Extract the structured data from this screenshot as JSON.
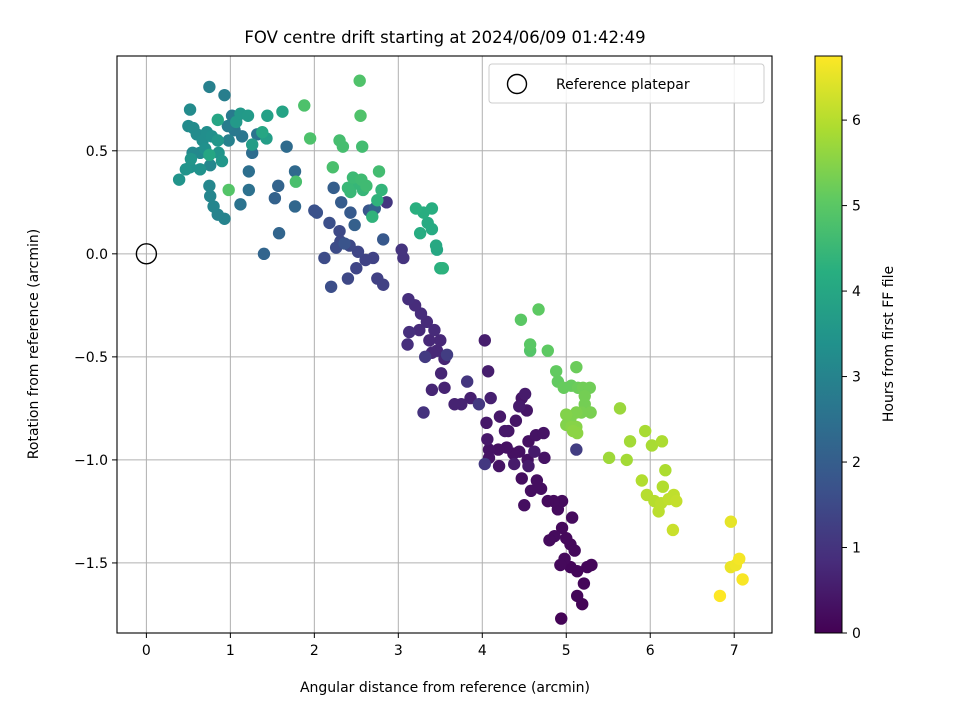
{
  "chart_data": {
    "type": "scatter",
    "title": "FOV centre drift starting at 2024/06/09 01:42:49",
    "xlabel": "Angular distance from reference (arcmin)",
    "ylabel": "Rotation from reference (arcmin)",
    "xlim": [
      -0.35,
      7.45
    ],
    "ylim": [
      -1.84,
      0.96
    ],
    "xticks": [
      0,
      1,
      2,
      3,
      4,
      5,
      6,
      7
    ],
    "xtick_labels": [
      "0",
      "1",
      "2",
      "3",
      "4",
      "5",
      "6",
      "7"
    ],
    "yticks": [
      0.5,
      0.0,
      -0.5,
      -1.0,
      -1.5
    ],
    "ytick_labels": [
      "0.5",
      "0.0",
      "−0.5",
      "−1.0",
      "−1.5"
    ],
    "grid": true,
    "legend": {
      "position": "top-right",
      "entries": [
        "Reference platepar"
      ]
    },
    "reference_point": {
      "x": 0,
      "y": 0,
      "label": "Reference platepar"
    },
    "colorbar": {
      "label": "Hours from first FF file",
      "min": 0,
      "max": 6.75,
      "ticks": [
        0,
        1,
        2,
        3,
        4,
        5,
        6
      ],
      "tick_labels": [
        "0",
        "1",
        "2",
        "3",
        "4",
        "5",
        "6"
      ],
      "colormap": "viridis"
    },
    "points": [
      [
        4.94,
        -1.77,
        0.05
      ],
      [
        5.19,
        -1.7,
        0.05
      ],
      [
        5.13,
        -1.66,
        0.1
      ],
      [
        5.21,
        -1.6,
        0.1
      ],
      [
        5.25,
        -1.52,
        0.1
      ],
      [
        5.3,
        -1.51,
        0.1
      ],
      [
        5.13,
        -1.54,
        0.1
      ],
      [
        5.05,
        -1.52,
        0.1
      ],
      [
        4.98,
        -1.48,
        0.15
      ],
      [
        4.93,
        -1.51,
        0.15
      ],
      [
        5.05,
        -1.41,
        0.15
      ],
      [
        5.1,
        -1.44,
        0.15
      ],
      [
        5.0,
        -1.38,
        0.15
      ],
      [
        4.95,
        -1.33,
        0.15
      ],
      [
        4.86,
        -1.37,
        0.2
      ],
      [
        4.8,
        -1.39,
        0.2
      ],
      [
        4.9,
        -1.24,
        0.2
      ],
      [
        5.07,
        -1.28,
        0.2
      ],
      [
        4.95,
        -1.2,
        0.2
      ],
      [
        4.85,
        -1.2,
        0.2
      ],
      [
        4.78,
        -1.2,
        0.2
      ],
      [
        4.7,
        -1.14,
        0.25
      ],
      [
        4.65,
        -1.1,
        0.25
      ],
      [
        4.58,
        -1.15,
        0.25
      ],
      [
        4.47,
        -1.09,
        0.25
      ],
      [
        4.5,
        -1.22,
        0.25
      ],
      [
        4.54,
        -1.0,
        0.3
      ],
      [
        4.44,
        -0.96,
        0.3
      ],
      [
        4.37,
        -0.97,
        0.3
      ],
      [
        4.29,
        -0.94,
        0.3
      ],
      [
        4.19,
        -0.95,
        0.3
      ],
      [
        4.55,
        -0.91,
        0.3
      ],
      [
        4.64,
        -0.88,
        0.35
      ],
      [
        4.73,
        -0.87,
        0.35
      ],
      [
        4.74,
        -0.99,
        0.35
      ],
      [
        4.08,
        -0.95,
        0.35
      ],
      [
        4.08,
        -0.99,
        0.35
      ],
      [
        4.2,
        -1.03,
        0.35
      ],
      [
        4.31,
        -0.86,
        0.4
      ],
      [
        4.4,
        -0.81,
        0.4
      ],
      [
        4.53,
        -0.76,
        0.4
      ],
      [
        4.47,
        -0.7,
        0.4
      ],
      [
        4.21,
        -0.79,
        0.45
      ],
      [
        4.05,
        -0.82,
        0.45
      ],
      [
        4.06,
        -0.9,
        0.45
      ],
      [
        4.27,
        -0.86,
        0.45
      ],
      [
        4.44,
        -0.74,
        0.5
      ],
      [
        4.51,
        -0.68,
        0.5
      ],
      [
        4.62,
        -0.96,
        0.5
      ],
      [
        4.55,
        -1.03,
        0.5
      ],
      [
        4.38,
        -1.02,
        0.5
      ],
      [
        4.03,
        -0.42,
        0.55
      ],
      [
        4.07,
        -0.57,
        0.55
      ],
      [
        4.1,
        -0.7,
        0.6
      ],
      [
        3.86,
        -0.7,
        0.6
      ],
      [
        3.75,
        -0.73,
        0.65
      ],
      [
        3.67,
        -0.73,
        0.65
      ],
      [
        3.55,
        -0.65,
        0.65
      ],
      [
        3.4,
        -0.66,
        0.7
      ],
      [
        3.51,
        -0.58,
        0.7
      ],
      [
        3.55,
        -0.51,
        0.7
      ],
      [
        3.46,
        -0.47,
        0.75
      ],
      [
        3.5,
        -0.42,
        0.75
      ],
      [
        3.4,
        -0.48,
        0.75
      ],
      [
        3.37,
        -0.42,
        0.75
      ],
      [
        3.43,
        -0.37,
        0.8
      ],
      [
        3.34,
        -0.33,
        0.8
      ],
      [
        3.25,
        -0.37,
        0.8
      ],
      [
        3.27,
        -0.29,
        0.85
      ],
      [
        3.2,
        -0.25,
        0.85
      ],
      [
        3.12,
        -0.22,
        0.9
      ],
      [
        3.13,
        -0.38,
        0.9
      ],
      [
        3.11,
        -0.44,
        0.9
      ],
      [
        3.3,
        -0.77,
        0.95
      ],
      [
        3.06,
        -0.02,
        1.0
      ],
      [
        3.04,
        0.02,
        1.0
      ],
      [
        2.86,
        0.25,
        1.05
      ],
      [
        3.82,
        -0.62,
        1.05
      ],
      [
        3.96,
        -0.73,
        1.1
      ],
      [
        4.03,
        -1.02,
        1.1
      ],
      [
        3.32,
        -0.5,
        1.15
      ],
      [
        3.58,
        -0.49,
        1.2
      ],
      [
        5.12,
        -0.95,
        1.2
      ],
      [
        2.75,
        -0.12,
        1.3
      ],
      [
        2.82,
        -0.15,
        1.3
      ],
      [
        2.7,
        -0.02,
        1.35
      ],
      [
        2.61,
        -0.03,
        1.35
      ],
      [
        2.5,
        -0.07,
        1.4
      ],
      [
        2.52,
        0.01,
        1.4
      ],
      [
        2.42,
        0.04,
        1.45
      ],
      [
        2.4,
        -0.12,
        1.45
      ],
      [
        2.31,
        0.06,
        1.5
      ],
      [
        2.3,
        0.11,
        1.5
      ],
      [
        2.26,
        0.03,
        1.55
      ],
      [
        2.12,
        -0.02,
        1.55
      ],
      [
        2.2,
        -0.16,
        1.6
      ],
      [
        2.18,
        0.15,
        1.65
      ],
      [
        2.03,
        0.2,
        1.7
      ],
      [
        2.0,
        0.21,
        1.7
      ],
      [
        2.36,
        0.05,
        1.75
      ],
      [
        2.65,
        0.21,
        1.8
      ],
      [
        2.82,
        0.07,
        1.85
      ],
      [
        2.43,
        0.2,
        1.9
      ],
      [
        2.32,
        0.25,
        1.95
      ],
      [
        2.23,
        0.32,
        2.0
      ],
      [
        2.48,
        0.14,
        2.05
      ],
      [
        2.72,
        0.22,
        2.1
      ],
      [
        1.53,
        0.27,
        2.1
      ],
      [
        1.57,
        0.33,
        2.15
      ],
      [
        1.4,
        0.0,
        2.2
      ],
      [
        1.58,
        0.1,
        2.2
      ],
      [
        1.77,
        0.23,
        2.25
      ],
      [
        1.77,
        0.4,
        2.3
      ],
      [
        1.67,
        0.52,
        2.35
      ],
      [
        1.26,
        0.49,
        2.4
      ],
      [
        1.22,
        0.4,
        2.45
      ],
      [
        1.22,
        0.31,
        2.5
      ],
      [
        1.12,
        0.24,
        2.55
      ],
      [
        1.32,
        0.58,
        2.6
      ],
      [
        1.14,
        0.57,
        2.65
      ],
      [
        1.05,
        0.6,
        2.7
      ],
      [
        1.02,
        0.67,
        2.75
      ],
      [
        0.97,
        0.62,
        2.8
      ],
      [
        0.93,
        0.77,
        2.85
      ],
      [
        0.75,
        0.81,
        2.9
      ],
      [
        0.98,
        0.55,
        2.95
      ],
      [
        0.93,
        0.17,
        3.0
      ],
      [
        0.85,
        0.19,
        3.0
      ],
      [
        0.8,
        0.23,
        3.05
      ],
      [
        0.76,
        0.28,
        3.05
      ],
      [
        0.75,
        0.33,
        3.1
      ],
      [
        0.76,
        0.43,
        3.1
      ],
      [
        0.64,
        0.49,
        3.15
      ],
      [
        0.55,
        0.49,
        3.15
      ],
      [
        0.5,
        0.62,
        3.2
      ],
      [
        0.52,
        0.7,
        3.2
      ],
      [
        0.56,
        0.61,
        3.25
      ],
      [
        0.6,
        0.58,
        3.25
      ],
      [
        0.67,
        0.55,
        3.3
      ],
      [
        0.72,
        0.59,
        3.3
      ],
      [
        0.78,
        0.57,
        3.35
      ],
      [
        0.7,
        0.51,
        3.35
      ],
      [
        0.64,
        0.41,
        3.4
      ],
      [
        0.52,
        0.42,
        3.4
      ],
      [
        0.47,
        0.41,
        3.45
      ],
      [
        0.39,
        0.36,
        3.45
      ],
      [
        0.53,
        0.46,
        3.5
      ],
      [
        0.86,
        0.49,
        3.5
      ],
      [
        0.85,
        0.55,
        3.55
      ],
      [
        0.9,
        0.45,
        3.55
      ],
      [
        1.07,
        0.64,
        3.6
      ],
      [
        1.12,
        0.68,
        3.6
      ],
      [
        1.21,
        0.67,
        3.65
      ],
      [
        1.26,
        0.53,
        3.7
      ],
      [
        1.43,
        0.56,
        3.75
      ],
      [
        1.44,
        0.67,
        3.8
      ],
      [
        1.62,
        0.69,
        3.9
      ],
      [
        0.85,
        0.65,
        3.95
      ],
      [
        0.75,
        0.48,
        4.0
      ],
      [
        1.38,
        0.59,
        4.0
      ],
      [
        3.46,
        0.02,
        4.0
      ],
      [
        3.45,
        0.04,
        4.05
      ],
      [
        3.35,
        0.15,
        4.1
      ],
      [
        3.4,
        0.12,
        4.1
      ],
      [
        3.26,
        0.1,
        4.15
      ],
      [
        3.4,
        0.22,
        4.2
      ],
      [
        3.3,
        0.2,
        4.2
      ],
      [
        3.21,
        0.22,
        4.25
      ],
      [
        3.5,
        -0.07,
        4.25
      ],
      [
        3.53,
        -0.07,
        4.3
      ],
      [
        2.75,
        0.26,
        4.35
      ],
      [
        2.69,
        0.18,
        4.35
      ],
      [
        2.8,
        0.31,
        4.4
      ],
      [
        2.58,
        0.31,
        4.45
      ],
      [
        2.52,
        0.34,
        4.45
      ],
      [
        2.43,
        0.3,
        4.5
      ],
      [
        2.4,
        0.32,
        4.5
      ],
      [
        2.46,
        0.37,
        4.55
      ],
      [
        2.56,
        0.36,
        4.6
      ],
      [
        2.62,
        0.33,
        4.6
      ],
      [
        2.77,
        0.4,
        4.65
      ],
      [
        2.57,
        0.52,
        4.65
      ],
      [
        2.3,
        0.55,
        4.7
      ],
      [
        2.34,
        0.52,
        4.7
      ],
      [
        2.22,
        0.42,
        4.75
      ],
      [
        1.78,
        0.35,
        4.75
      ],
      [
        1.95,
        0.56,
        4.8
      ],
      [
        1.88,
        0.72,
        4.8
      ],
      [
        2.55,
        0.67,
        4.85
      ],
      [
        2.54,
        0.84,
        4.85
      ],
      [
        0.98,
        0.31,
        4.9
      ],
      [
        4.57,
        -0.47,
        4.9
      ],
      [
        4.46,
        -0.32,
        5.0
      ],
      [
        4.57,
        -0.44,
        5.0
      ],
      [
        4.67,
        -0.27,
        5.05
      ],
      [
        4.78,
        -0.47,
        5.05
      ],
      [
        4.88,
        -0.57,
        5.1
      ],
      [
        4.9,
        -0.62,
        5.1
      ],
      [
        4.97,
        -0.65,
        5.15
      ],
      [
        5.06,
        -0.64,
        5.15
      ],
      [
        5.12,
        -0.55,
        5.2
      ],
      [
        5.14,
        -0.65,
        5.2
      ],
      [
        5.2,
        -0.65,
        5.25
      ],
      [
        5.28,
        -0.65,
        5.25
      ],
      [
        5.22,
        -0.69,
        5.3
      ],
      [
        5.22,
        -0.73,
        5.3
      ],
      [
        5.29,
        -0.77,
        5.35
      ],
      [
        5.18,
        -0.77,
        5.35
      ],
      [
        5.12,
        -0.77,
        5.4
      ],
      [
        5.05,
        -0.8,
        5.4
      ],
      [
        5.0,
        -0.78,
        5.45
      ],
      [
        5.0,
        -0.83,
        5.45
      ],
      [
        5.06,
        -0.84,
        5.5
      ],
      [
        5.12,
        -0.84,
        5.5
      ],
      [
        5.13,
        -0.87,
        5.55
      ],
      [
        5.08,
        -0.86,
        5.55
      ],
      [
        5.64,
        -0.75,
        5.7
      ],
      [
        5.51,
        -0.99,
        5.75
      ],
      [
        5.72,
        -1.0,
        5.8
      ],
      [
        5.76,
        -0.91,
        5.8
      ],
      [
        5.94,
        -0.86,
        5.85
      ],
      [
        6.02,
        -0.93,
        5.85
      ],
      [
        6.14,
        -0.91,
        5.9
      ],
      [
        6.18,
        -1.05,
        5.9
      ],
      [
        6.15,
        -1.13,
        5.95
      ],
      [
        5.9,
        -1.1,
        5.95
      ],
      [
        5.96,
        -1.17,
        6.0
      ],
      [
        6.05,
        -1.2,
        6.0
      ],
      [
        6.13,
        -1.21,
        6.05
      ],
      [
        6.1,
        -1.25,
        6.05
      ],
      [
        6.22,
        -1.19,
        6.1
      ],
      [
        6.28,
        -1.17,
        6.1
      ],
      [
        6.31,
        -1.2,
        6.15
      ],
      [
        6.27,
        -1.34,
        6.2
      ],
      [
        6.96,
        -1.3,
        6.5
      ],
      [
        6.96,
        -1.52,
        6.55
      ],
      [
        7.02,
        -1.51,
        6.6
      ],
      [
        7.06,
        -1.48,
        6.65
      ],
      [
        7.1,
        -1.58,
        6.7
      ],
      [
        6.83,
        -1.66,
        6.75
      ]
    ]
  }
}
